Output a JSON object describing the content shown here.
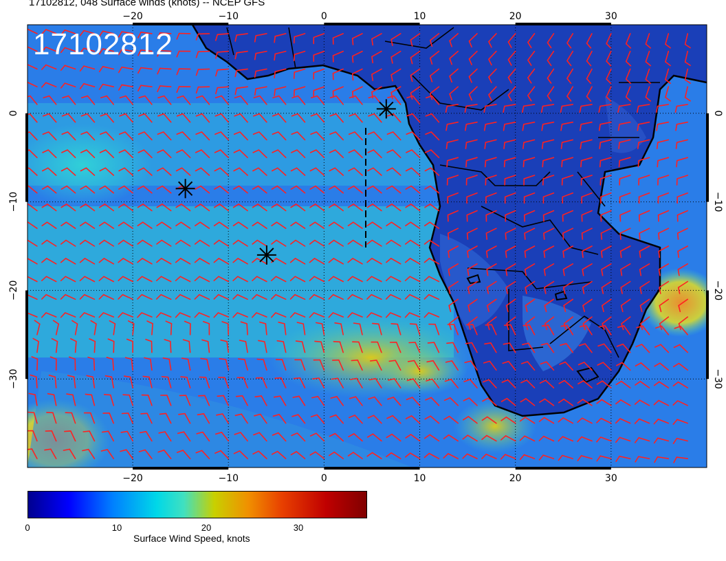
{
  "title": "17102812, 048 Surface winds (knots) -- NCEP GFS",
  "stamp": "17102812",
  "axes": {
    "lon_ticks": [
      "−20",
      "−10",
      "0",
      "10",
      "20",
      "30"
    ],
    "lat_ticks": [
      "0",
      "−10",
      "−20",
      "−30"
    ],
    "lon_range": [
      -31,
      40
    ],
    "lat_range": [
      -40,
      10
    ]
  },
  "colorbar": {
    "label": "Surface Wind Speed, knots",
    "ticks": [
      "0",
      "10",
      "20",
      "30"
    ],
    "range": [
      0,
      38
    ],
    "colormap": "jet"
  },
  "markers": [
    {
      "name": "asterisk-1",
      "lon": 6.5,
      "lat": 0.5
    },
    {
      "name": "asterisk-2",
      "lon": -14.5,
      "lat": -8.5
    },
    {
      "name": "asterisk-3",
      "lon": -6.0,
      "lat": -16.0
    }
  ],
  "colors": {
    "barb": "#ff2020",
    "coast": "#000000",
    "ocean_base": "#2a7de8",
    "land_base": "#1a3fb8",
    "high_wind": "#e8a020"
  },
  "grid": "dotted",
  "legend_position": "bottom-left"
}
